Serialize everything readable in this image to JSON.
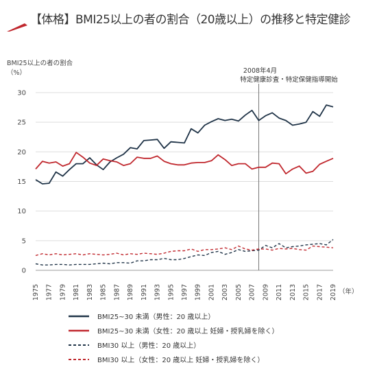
{
  "header": {
    "title": "【体格】BMI25以上の者の割合（20歳以上）の推移と特定健診",
    "accent_color": "#c0272d"
  },
  "chart_data": {
    "type": "line",
    "ylabel": "BMI25以上の者の割合",
    "yunit": "（%）",
    "xunit": "（年）",
    "ylim": [
      0,
      30
    ],
    "yticks": [
      0,
      5,
      10,
      15,
      20,
      25,
      30
    ],
    "xlim": [
      1975,
      2019
    ],
    "xticks": [
      1975,
      1977,
      1979,
      1981,
      1983,
      1985,
      1987,
      1989,
      1991,
      1993,
      1995,
      1997,
      1999,
      2001,
      2003,
      2005,
      2007,
      2009,
      2011,
      2013,
      2015,
      2017,
      2019
    ],
    "grid": true,
    "annotation": {
      "x": 2008,
      "line1": "2008年4月",
      "line2": "特定健康診査・特定保健指導開始"
    },
    "x": [
      1975,
      1976,
      1977,
      1978,
      1979,
      1980,
      1981,
      1982,
      1983,
      1984,
      1985,
      1986,
      1987,
      1988,
      1989,
      1990,
      1991,
      1992,
      1993,
      1994,
      1995,
      1996,
      1997,
      1998,
      1999,
      2000,
      2001,
      2002,
      2003,
      2004,
      2005,
      2006,
      2007,
      2008,
      2009,
      2010,
      2011,
      2012,
      2013,
      2014,
      2015,
      2016,
      2017,
      2018,
      2019
    ],
    "series": [
      {
        "name": "BMI25~30 未満（男性：20 歳以上）",
        "color": "#1f3347",
        "dash": "solid",
        "values": [
          15.3,
          14.6,
          14.7,
          16.6,
          15.9,
          17.0,
          18.0,
          18.0,
          19.0,
          17.8,
          17.0,
          18.3,
          19.0,
          19.6,
          20.7,
          20.5,
          21.9,
          22.0,
          22.1,
          20.6,
          21.7,
          21.6,
          21.5,
          23.9,
          23.2,
          24.5,
          25.1,
          25.6,
          25.3,
          25.5,
          25.2,
          26.2,
          27.0,
          25.3,
          26.1,
          26.6,
          25.7,
          25.3,
          24.5,
          24.7,
          25.0,
          26.8,
          26.0,
          27.9,
          27.6
        ]
      },
      {
        "name": "BMI25~30 未満（女性：20 歳以上 妊婦・授乳婦を除く）",
        "color": "#c0272d",
        "dash": "solid",
        "values": [
          17.1,
          18.4,
          18.1,
          18.3,
          17.6,
          18.0,
          19.9,
          19.1,
          18.1,
          17.7,
          18.8,
          18.5,
          18.3,
          17.7,
          18.0,
          19.1,
          18.9,
          18.9,
          19.3,
          18.4,
          18.0,
          17.8,
          17.8,
          18.1,
          18.2,
          18.2,
          18.5,
          19.5,
          18.7,
          17.7,
          18.0,
          18.0,
          17.1,
          17.4,
          17.4,
          18.1,
          18.0,
          16.3,
          17.1,
          17.6,
          16.4,
          16.7,
          17.9,
          18.4,
          18.9
        ]
      },
      {
        "name": "BMI30 以上（男性：20 歳以上）",
        "color": "#1f3347",
        "dash": "dashed",
        "values": [
          1.1,
          0.9,
          0.9,
          1.0,
          1.0,
          0.9,
          1.0,
          1.0,
          1.0,
          1.1,
          1.2,
          1.1,
          1.3,
          1.3,
          1.2,
          1.6,
          1.6,
          1.8,
          1.8,
          2.0,
          1.8,
          1.8,
          2.0,
          2.3,
          2.6,
          2.5,
          3.0,
          3.2,
          2.7,
          3.0,
          3.5,
          3.2,
          3.3,
          3.4,
          4.2,
          3.8,
          4.5,
          3.8,
          4.0,
          4.1,
          4.3,
          4.4,
          4.5,
          4.3,
          5.2
        ]
      },
      {
        "name": "BMI30 以上（女性：20 歳以上 妊婦・授乳婦を除く）",
        "color": "#c0272d",
        "dash": "dashed",
        "values": [
          2.5,
          2.8,
          2.6,
          2.8,
          2.6,
          2.7,
          2.8,
          2.6,
          2.8,
          2.7,
          2.6,
          2.7,
          2.9,
          2.6,
          2.8,
          2.7,
          2.9,
          2.8,
          2.7,
          2.9,
          3.2,
          3.3,
          3.3,
          3.6,
          3.2,
          3.5,
          3.5,
          3.6,
          3.8,
          3.5,
          4.1,
          3.6,
          3.4,
          3.6,
          3.6,
          3.4,
          3.7,
          3.6,
          3.7,
          3.5,
          3.4,
          4.1,
          4.0,
          3.9,
          3.8
        ]
      }
    ]
  }
}
